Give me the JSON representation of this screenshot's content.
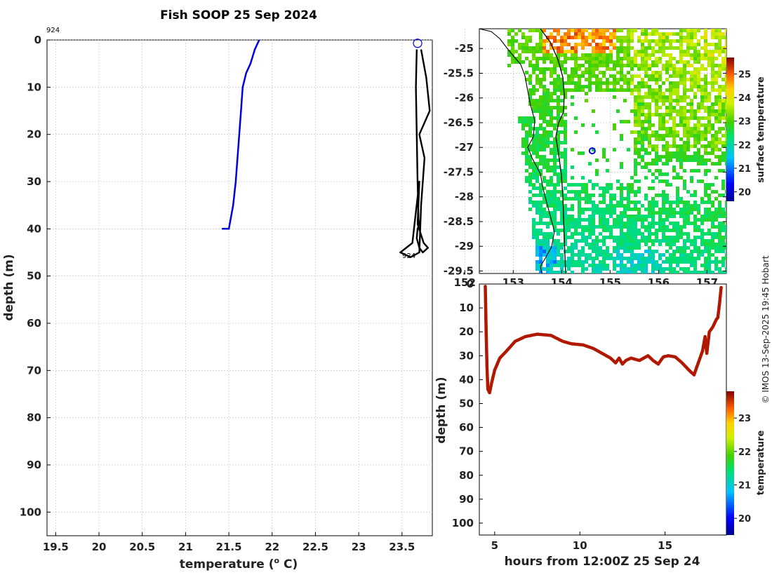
{
  "title": "Fish SOOP 25 Sep 2024",
  "credit": "© IMOS 13-Sep-2025 19:45 Hobart",
  "colors": {
    "profile_line": "#0000dd",
    "track_line": "#000000",
    "depth_track": "#b01800"
  },
  "chart_data": [
    {
      "type": "line",
      "name": "temperature-profile",
      "xlabel": "temperature (o C)",
      "ylabel": "depth (m)",
      "xlim": [
        19.4,
        23.85
      ],
      "ylim": [
        105,
        0
      ],
      "xticks": [
        "19.5",
        "20",
        "20.5",
        "21",
        "21.5",
        "22",
        "22.5",
        "23",
        "23.5"
      ],
      "xtick_values": [
        19.5,
        20,
        20.5,
        21,
        21.5,
        22,
        22.5,
        23,
        23.5
      ],
      "yticks": [
        0,
        10,
        20,
        30,
        40,
        50,
        60,
        70,
        80,
        90,
        100
      ],
      "tag_top": "924",
      "tag_bottom": "924",
      "series": [
        {
          "name": "profile",
          "x": [
            21.85,
            21.8,
            21.75,
            21.7,
            21.66,
            21.64,
            21.62,
            21.6,
            21.58,
            21.55,
            21.5,
            21.46,
            21.42
          ],
          "y": [
            0,
            2,
            5,
            7,
            10,
            15,
            20,
            25,
            30,
            35,
            40,
            40,
            40
          ]
        },
        {
          "name": "track",
          "x": [
            23.67,
            23.66,
            23.67,
            23.68,
            23.69,
            23.7,
            23.68,
            23.67,
            23.7,
            23.74,
            23.8,
            23.75,
            23.68,
            23.7,
            23.62,
            23.48,
            23.6,
            23.7,
            23.72,
            23.76,
            23.7,
            23.82,
            23.78,
            23.72
          ],
          "y": [
            2,
            10,
            20,
            30,
            38,
            39,
            40,
            42,
            44,
            45,
            44,
            43,
            39,
            30,
            43,
            45,
            46,
            45,
            35,
            25,
            20,
            15,
            8,
            2
          ]
        }
      ],
      "marker": {
        "x": 23.68,
        "y": 0.7
      }
    },
    {
      "type": "heatmap",
      "name": "surface-temperature-map",
      "xlim": [
        152.3,
        157.4
      ],
      "ylim": [
        -29.55,
        -24.6
      ],
      "xticks": [
        "152",
        "153",
        "154",
        "155",
        "156",
        "157"
      ],
      "xtick_values": [
        152,
        153,
        154,
        155,
        156,
        157
      ],
      "yticks": [
        "-25",
        "-25.5",
        "-26",
        "-26.5",
        "-27",
        "-27.5",
        "-28",
        "-28.5",
        "-29",
        "-29.5"
      ],
      "ytick_values": [
        -25,
        -25.5,
        -26,
        -26.5,
        -27,
        -27.5,
        -28,
        -28.5,
        -29,
        -29.5
      ],
      "colorbar_label": "surface temperature",
      "colorbar_range": [
        19.6,
        25.7
      ],
      "colorbar_ticks": [
        "20",
        "21",
        "22",
        "23",
        "24",
        "25"
      ],
      "colorbar_values": [
        20,
        21,
        22,
        23,
        24,
        25
      ],
      "marker": {
        "lon": 154.63,
        "lat": -27.07
      }
    },
    {
      "type": "scatter",
      "name": "depth-time",
      "xlabel": "hours from 12:00Z 25 Sep 24",
      "ylabel": "depth (m)",
      "xlim": [
        4.1,
        18.6
      ],
      "ylim": [
        105,
        0
      ],
      "xticks": [
        "5",
        "10",
        "15"
      ],
      "xtick_values": [
        5,
        10,
        15
      ],
      "yticks": [
        "0",
        "10",
        "20",
        "30",
        "40",
        "50",
        "60",
        "70",
        "80",
        "90",
        "100"
      ],
      "ytick_values": [
        0,
        10,
        20,
        30,
        40,
        50,
        60,
        70,
        80,
        90,
        100
      ],
      "colorbar_label": "temperature",
      "colorbar_range": [
        19.5,
        23.8
      ],
      "colorbar_ticks": [
        "20",
        "21",
        "22",
        "23"
      ],
      "colorbar_values": [
        20,
        21,
        22,
        23
      ],
      "x": [
        4.45,
        4.5,
        4.55,
        4.6,
        4.7,
        4.8,
        5.0,
        5.3,
        5.7,
        6.2,
        6.8,
        7.5,
        8.3,
        9.0,
        9.5,
        10.2,
        10.8,
        11.3,
        11.8,
        12.1,
        12.3,
        12.5,
        12.7,
        13.0,
        13.5,
        14.0,
        14.3,
        14.6,
        14.9,
        15.2,
        15.6,
        16.0,
        16.4,
        16.7,
        17.0,
        17.2,
        17.35,
        17.45,
        17.6,
        17.8,
        18.0,
        18.1,
        18.2,
        18.3
      ],
      "y": [
        1,
        20,
        35,
        44,
        45.5,
        42,
        36,
        31,
        28,
        24,
        22,
        21,
        21.5,
        24,
        25,
        25.5,
        27,
        29,
        31,
        33,
        31,
        33.5,
        32,
        31,
        32,
        30,
        32,
        33.5,
        30.5,
        30,
        30.5,
        33,
        36,
        38,
        32,
        28,
        22,
        29,
        20,
        18,
        15,
        14,
        8,
        1
      ]
    }
  ]
}
